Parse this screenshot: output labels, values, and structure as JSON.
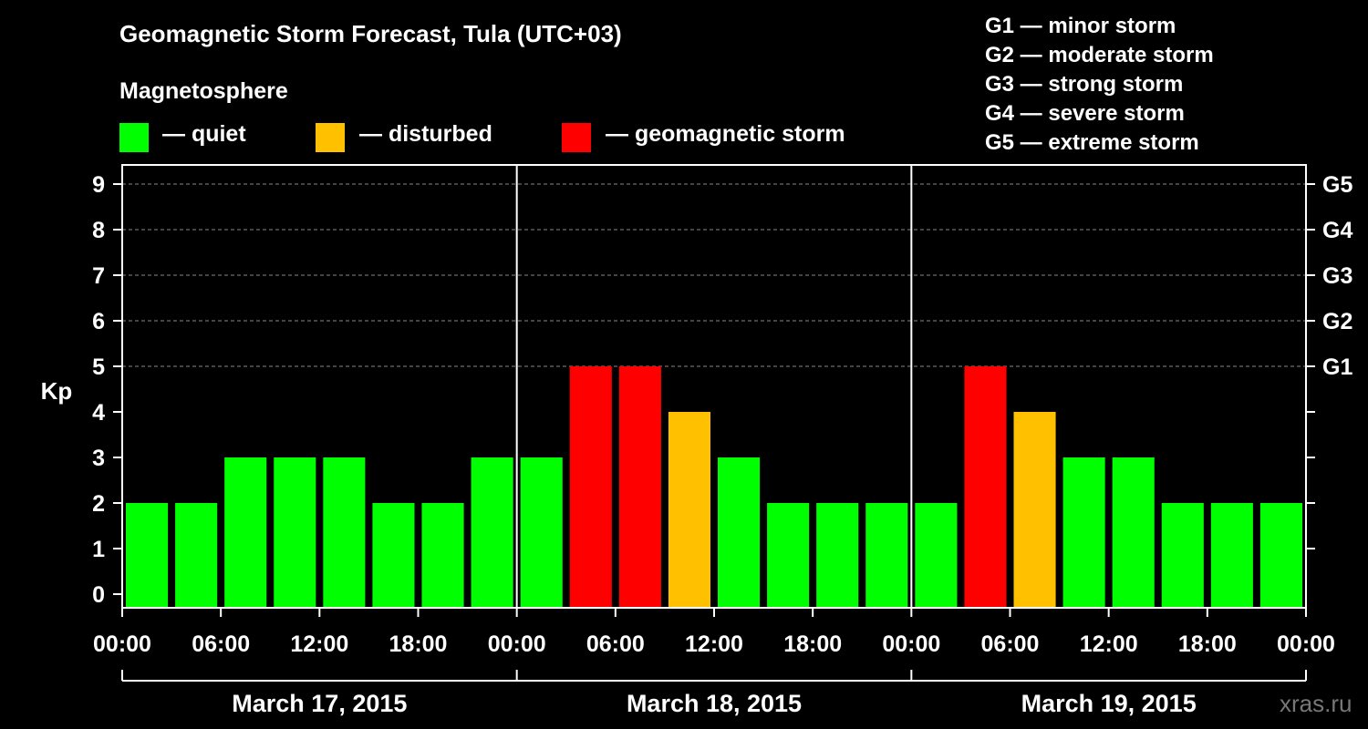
{
  "title": "Geomagnetic Storm Forecast, Tula (UTC+03)",
  "legend": {
    "heading": "Magnetosphere",
    "items": [
      {
        "label": "— quiet",
        "color": "#00ff00"
      },
      {
        "label": "— disturbed",
        "color": "#ffc000"
      },
      {
        "label": "— geomagnetic storm",
        "color": "#ff0000"
      }
    ]
  },
  "g_levels": [
    "G1 — minor storm",
    "G2 — moderate storm",
    "G3 — strong storm",
    "G4 — severe storm",
    "G5 — extreme storm"
  ],
  "watermark": "xras.ru",
  "chart_data": {
    "type": "bar",
    "title": "Geomagnetic Storm Forecast, Tula (UTC+03)",
    "ylabel": "Kp",
    "xlabel": "",
    "ylim": [
      0,
      9
    ],
    "y_ticks": [
      "0",
      "1",
      "2",
      "3",
      "4",
      "5",
      "6",
      "7",
      "8",
      "9"
    ],
    "right_axis": {
      "G1": 5,
      "G2": 6,
      "G3": 7,
      "G4": 8,
      "G5": 9
    },
    "x_ticks": [
      "00:00",
      "06:00",
      "12:00",
      "18:00",
      "00:00",
      "06:00",
      "12:00",
      "18:00",
      "00:00",
      "06:00",
      "12:00",
      "18:00",
      "00:00"
    ],
    "days": [
      "March 17, 2015",
      "March 18, 2015",
      "March 19, 2015"
    ],
    "interval_hours": 3,
    "values": [
      2,
      2,
      3,
      3,
      3,
      2,
      2,
      3,
      3,
      5,
      5,
      4,
      3,
      2,
      2,
      2,
      2,
      5,
      4,
      3,
      3,
      2,
      2,
      2
    ],
    "status": [
      "quiet",
      "quiet",
      "quiet",
      "quiet",
      "quiet",
      "quiet",
      "quiet",
      "quiet",
      "quiet",
      "storm",
      "storm",
      "disturbed",
      "quiet",
      "quiet",
      "quiet",
      "quiet",
      "quiet",
      "storm",
      "disturbed",
      "quiet",
      "quiet",
      "quiet",
      "quiet",
      "quiet"
    ],
    "status_colors": {
      "quiet": "#00ff00",
      "disturbed": "#ffc000",
      "storm": "#ff0000"
    }
  }
}
